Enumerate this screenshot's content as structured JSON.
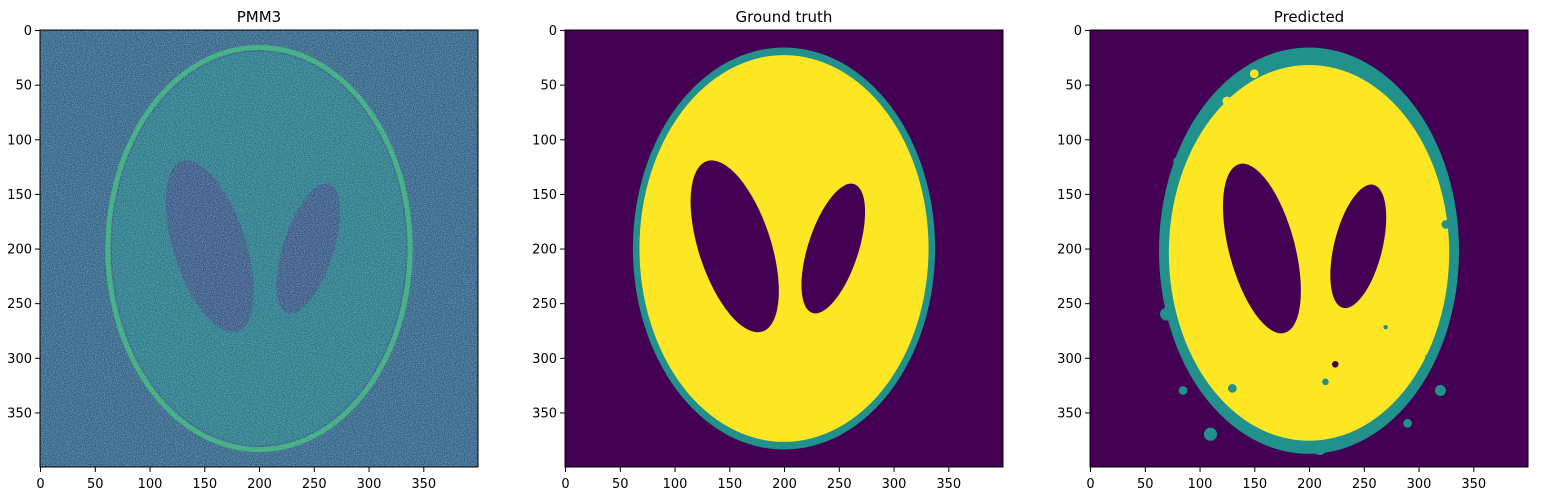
{
  "colors": {
    "background": "#440154",
    "edge": "#21918c",
    "interior": "#fde725",
    "noise_low": "#3b528b",
    "noise_high": "#5ec962"
  },
  "chart_data": [
    {
      "type": "heatmap",
      "title": "PMM3",
      "xlabel": "",
      "ylabel": "",
      "xlim": [
        0,
        400
      ],
      "ylim": [
        400,
        0
      ],
      "xticks": [
        0,
        50,
        100,
        150,
        200,
        250,
        300,
        350
      ],
      "yticks": [
        0,
        50,
        100,
        150,
        200,
        250,
        300,
        350
      ],
      "colormap": "viridis",
      "content": "noisy Shepp-Logan phantom (values roughly 0-1)",
      "ellipses": [
        {
          "role": "outer_shell",
          "cx": 200,
          "cy": 200,
          "rx": 138,
          "ry": 184
        },
        {
          "role": "left_hole",
          "cx": 155,
          "cy": 198,
          "rx": 33,
          "ry": 82,
          "angle_deg": -18
        },
        {
          "role": "right_hole",
          "cx": 245,
          "cy": 200,
          "rx": 23,
          "ry": 62,
          "angle_deg": 18
        }
      ],
      "grid": false
    },
    {
      "type": "heatmap",
      "title": "Ground truth",
      "xlabel": "",
      "ylabel": "",
      "xlim": [
        0,
        400
      ],
      "ylim": [
        400,
        0
      ],
      "xticks": [
        0,
        50,
        100,
        150,
        200,
        250,
        300,
        350
      ],
      "yticks": [
        0,
        50,
        100,
        150,
        200,
        250,
        300,
        350
      ],
      "colormap": "viridis",
      "classes": [
        0,
        1,
        2
      ],
      "ellipses": [
        {
          "role": "outer_shell",
          "class": 1,
          "cx": 200,
          "cy": 200,
          "rx": 138,
          "ry": 184
        },
        {
          "role": "interior",
          "class": 2,
          "cx": 200,
          "cy": 200,
          "rx": 132,
          "ry": 177
        },
        {
          "role": "left_hole",
          "class": 0,
          "cx": 155,
          "cy": 198,
          "rx": 33,
          "ry": 82,
          "angle_deg": -18
        },
        {
          "role": "right_hole",
          "class": 0,
          "cx": 245,
          "cy": 200,
          "rx": 23,
          "ry": 62,
          "angle_deg": 18
        }
      ],
      "grid": false
    },
    {
      "type": "heatmap",
      "title": "Predicted",
      "xlabel": "",
      "ylabel": "",
      "xlim": [
        0,
        400
      ],
      "ylim": [
        400,
        0
      ],
      "xticks": [
        0,
        50,
        100,
        150,
        200,
        250,
        300,
        350
      ],
      "yticks": [
        0,
        50,
        100,
        150,
        200,
        250,
        300,
        350
      ],
      "colormap": "viridis",
      "classes": [
        0,
        1,
        2
      ],
      "ellipses": [
        {
          "role": "outer_shell",
          "class": 1,
          "cx": 200,
          "cy": 202,
          "rx": 137,
          "ry": 186
        },
        {
          "role": "interior",
          "class": 2,
          "cx": 200,
          "cy": 204,
          "rx": 128,
          "ry": 172
        },
        {
          "role": "left_hole",
          "class": 0,
          "cx": 157,
          "cy": 200,
          "rx": 30,
          "ry": 80,
          "angle_deg": -15
        },
        {
          "role": "right_hole",
          "class": 0,
          "cx": 245,
          "cy": 198,
          "rx": 22,
          "ry": 58,
          "angle_deg": 14
        }
      ],
      "blobs": [
        {
          "class": 1,
          "cx": 70,
          "cy": 260,
          "r": 6
        },
        {
          "class": 1,
          "cx": 85,
          "cy": 330,
          "r": 4
        },
        {
          "class": 1,
          "cx": 110,
          "cy": 370,
          "r": 6
        },
        {
          "class": 1,
          "cx": 130,
          "cy": 328,
          "r": 4
        },
        {
          "class": 1,
          "cx": 215,
          "cy": 322,
          "r": 3
        },
        {
          "class": 1,
          "cx": 270,
          "cy": 272,
          "r": 2
        },
        {
          "class": 1,
          "cx": 310,
          "cy": 300,
          "r": 4
        },
        {
          "class": 1,
          "cx": 320,
          "cy": 330,
          "r": 5
        },
        {
          "class": 1,
          "cx": 290,
          "cy": 360,
          "r": 4
        },
        {
          "class": 1,
          "cx": 180,
          "cy": 381,
          "r": 4
        },
        {
          "class": 1,
          "cx": 210,
          "cy": 383,
          "r": 6
        },
        {
          "class": 1,
          "cx": 325,
          "cy": 178,
          "r": 4
        },
        {
          "class": 1,
          "cx": 80,
          "cy": 120,
          "r": 4
        },
        {
          "class": 0,
          "cx": 224,
          "cy": 306,
          "r": 3
        },
        {
          "class": 2,
          "cx": 125,
          "cy": 65,
          "r": 4
        },
        {
          "class": 2,
          "cx": 150,
          "cy": 40,
          "r": 4
        }
      ],
      "grid": false
    }
  ]
}
